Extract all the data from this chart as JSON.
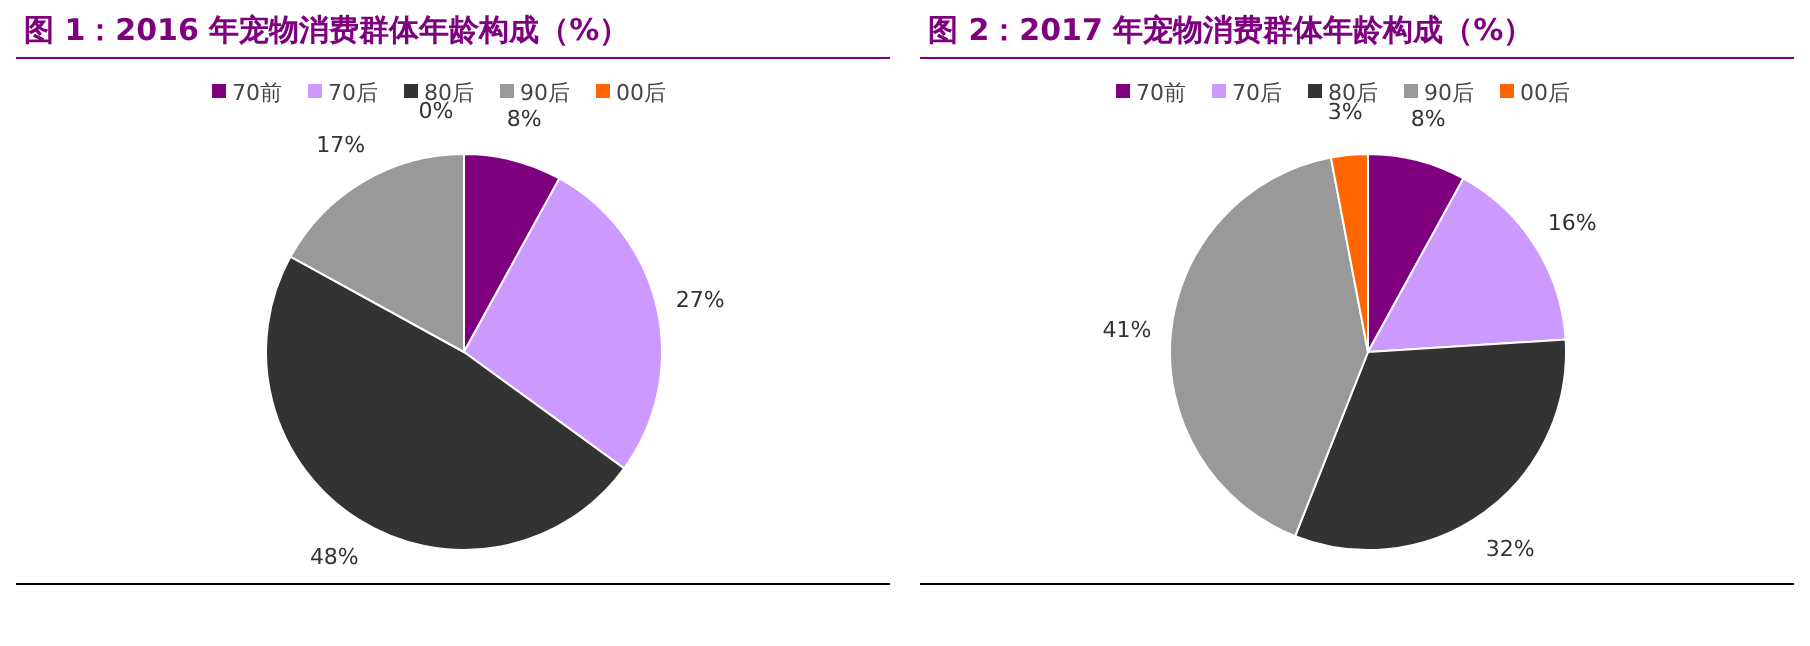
{
  "chart_data": [
    {
      "type": "pie",
      "title": "图 1：2016 年宠物消费群体年龄构成（%）",
      "categories": [
        "70前",
        "70后",
        "80后",
        "90后",
        "00后"
      ],
      "values": [
        8,
        27,
        48,
        17,
        0
      ],
      "colors": [
        "#7f007f",
        "#cc99ff",
        "#333333",
        "#999999",
        "#ff6600"
      ],
      "value_labels": [
        "8%",
        "27%",
        "48%",
        "17%",
        "0%"
      ],
      "legend": "top"
    },
    {
      "type": "pie",
      "title": "图 2：2017 年宠物消费群体年龄构成（%）",
      "categories": [
        "70前",
        "70后",
        "80后",
        "90后",
        "00后"
      ],
      "values": [
        8,
        16,
        32,
        41,
        3
      ],
      "colors": [
        "#7f007f",
        "#cc99ff",
        "#333333",
        "#999999",
        "#ff6600"
      ],
      "value_labels": [
        "8%",
        "16%",
        "32%",
        "41%",
        "3%"
      ],
      "legend": "top"
    }
  ]
}
